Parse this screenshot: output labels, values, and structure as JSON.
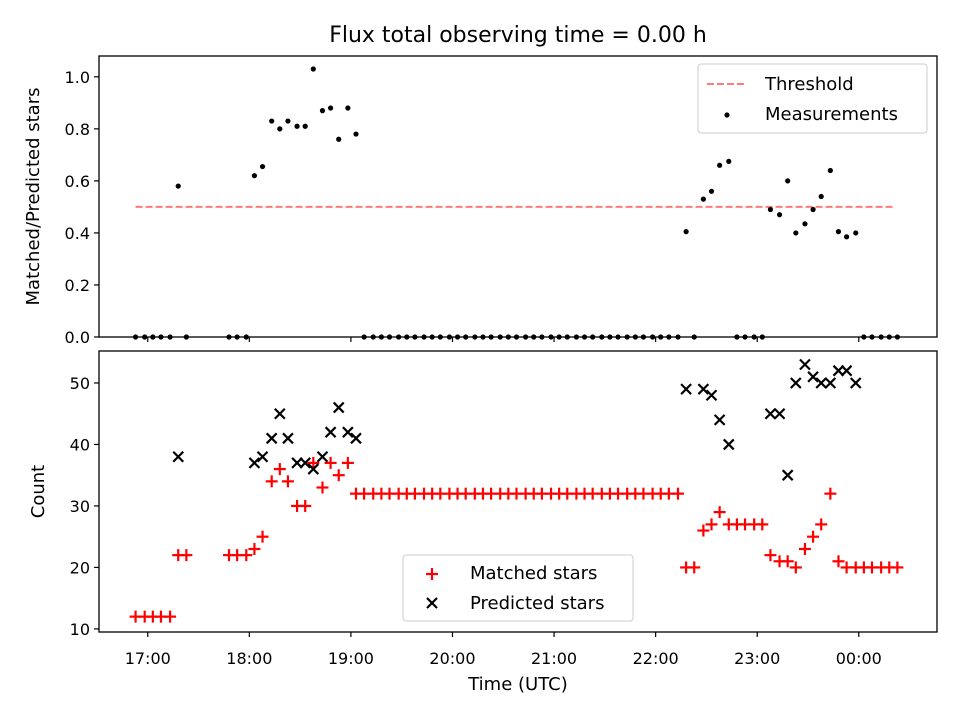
{
  "figure_title": "Flux total observing time = 0.00 h",
  "chart_data": [
    {
      "type": "scatter",
      "ylabel": "Matched/Predicted stars",
      "ylim": [
        0,
        1.08
      ],
      "yticks": [
        0.0,
        0.2,
        0.4,
        0.6,
        0.8,
        1.0
      ],
      "ytick_labels": [
        "0.0",
        "0.2",
        "0.4",
        "0.6",
        "0.8",
        "1.0"
      ],
      "xlim": [
        16.52,
        24.77
      ],
      "legend": {
        "placement": "top-right",
        "entries": [
          "Threshold",
          "Measurements"
        ]
      },
      "threshold": {
        "name": "Threshold",
        "value": 0.5,
        "x_start": 16.88,
        "x_end": 24.35,
        "color": "#ff7b7b",
        "style": "dashed"
      },
      "measurements": {
        "name": "Measurements",
        "color": "#000000",
        "x": [
          16.88,
          16.97,
          17.05,
          17.13,
          17.22,
          17.3,
          17.38,
          17.8,
          17.88,
          17.97,
          18.05,
          18.13,
          18.22,
          18.3,
          18.38,
          18.47,
          18.55,
          18.63,
          18.72,
          18.8,
          18.88,
          18.97,
          19.05,
          19.13,
          19.22,
          19.3,
          19.38,
          19.47,
          19.55,
          19.63,
          19.72,
          19.8,
          19.88,
          19.97,
          20.05,
          20.13,
          20.22,
          20.3,
          20.38,
          20.47,
          20.55,
          20.63,
          20.72,
          20.8,
          20.88,
          20.97,
          21.05,
          21.13,
          21.22,
          21.3,
          21.38,
          21.47,
          21.55,
          21.63,
          21.72,
          21.8,
          21.88,
          21.97,
          22.05,
          22.13,
          22.22,
          22.3,
          22.38,
          22.47,
          22.55,
          22.63,
          22.72,
          22.8,
          22.88,
          22.97,
          23.05,
          23.13,
          23.22,
          23.3,
          23.38,
          23.47,
          23.55,
          23.63,
          23.72,
          23.8,
          23.88,
          23.97,
          24.05,
          24.13,
          24.22,
          24.3,
          24.38
        ],
        "y": [
          0,
          0,
          0,
          0,
          0,
          0.58,
          0,
          0,
          0,
          0,
          0.62,
          0.655,
          0.83,
          0.8,
          0.83,
          0.81,
          0.81,
          1.03,
          0.87,
          0.88,
          0.76,
          0.88,
          0.78,
          0,
          0,
          0,
          0,
          0,
          0,
          0,
          0,
          0,
          0,
          0,
          0,
          0,
          0,
          0,
          0,
          0,
          0,
          0,
          0,
          0,
          0,
          0,
          0,
          0,
          0,
          0,
          0,
          0,
          0,
          0,
          0,
          0,
          0,
          0,
          0,
          0,
          0,
          0.405,
          0,
          0.53,
          0.56,
          0.66,
          0.675,
          0,
          0,
          0,
          0,
          0.49,
          0.47,
          0.6,
          0.4,
          0.435,
          0.49,
          0.54,
          0.64,
          0.405,
          0.385,
          0.4,
          0,
          0,
          0,
          0,
          0
        ]
      }
    },
    {
      "type": "scatter",
      "ylabel": "Count",
      "xlabel": "Time (UTC)",
      "ylim": [
        9.5,
        55.2
      ],
      "yticks": [
        10,
        20,
        30,
        40,
        50
      ],
      "ytick_labels": [
        "10",
        "20",
        "30",
        "40",
        "50"
      ],
      "xlim": [
        16.52,
        24.77
      ],
      "xticks": [
        17,
        18,
        19,
        20,
        21,
        22,
        23,
        24
      ],
      "xtick_labels": [
        "17:00",
        "18:00",
        "19:00",
        "20:00",
        "21:00",
        "22:00",
        "23:00",
        "00:00"
      ],
      "legend": {
        "placement": "lower-center",
        "entries": [
          "Matched stars",
          "Predicted stars"
        ]
      },
      "series": [
        {
          "name": "Matched stars",
          "marker": "+",
          "color": "#ff0000",
          "x": [
            16.88,
            16.97,
            17.05,
            17.13,
            17.22,
            17.3,
            17.38,
            17.8,
            17.88,
            17.97,
            18.05,
            18.13,
            18.22,
            18.3,
            18.38,
            18.47,
            18.55,
            18.63,
            18.72,
            18.8,
            18.88,
            18.97,
            19.05,
            19.13,
            19.22,
            19.3,
            19.38,
            19.47,
            19.55,
            19.63,
            19.72,
            19.8,
            19.88,
            19.97,
            20.05,
            20.13,
            20.22,
            20.3,
            20.38,
            20.47,
            20.55,
            20.63,
            20.72,
            20.8,
            20.88,
            20.97,
            21.05,
            21.13,
            21.22,
            21.3,
            21.38,
            21.47,
            21.55,
            21.63,
            21.72,
            21.8,
            21.88,
            21.97,
            22.05,
            22.13,
            22.22,
            22.3,
            22.38,
            22.47,
            22.55,
            22.63,
            22.72,
            22.8,
            22.88,
            22.97,
            23.05,
            23.13,
            23.22,
            23.3,
            23.38,
            23.47,
            23.55,
            23.63,
            23.72,
            23.8,
            23.88,
            23.97,
            24.05,
            24.13,
            24.22,
            24.3,
            24.38
          ],
          "y": [
            12,
            12,
            12,
            12,
            12,
            22,
            22,
            22,
            22,
            22,
            23,
            25,
            34,
            36,
            34,
            30,
            30,
            37,
            33,
            37,
            35,
            37,
            32,
            32,
            32,
            32,
            32,
            32,
            32,
            32,
            32,
            32,
            32,
            32,
            32,
            32,
            32,
            32,
            32,
            32,
            32,
            32,
            32,
            32,
            32,
            32,
            32,
            32,
            32,
            32,
            32,
            32,
            32,
            32,
            32,
            32,
            32,
            32,
            32,
            32,
            32,
            20,
            20,
            26,
            27,
            29,
            27,
            27,
            27,
            27,
            27,
            22,
            21,
            21,
            20,
            23,
            25,
            27,
            32,
            21,
            20,
            20,
            20,
            20,
            20,
            20,
            20
          ]
        },
        {
          "name": "Predicted stars",
          "marker": "x",
          "color": "#000000",
          "x": [
            17.3,
            18.05,
            18.13,
            18.22,
            18.3,
            18.38,
            18.47,
            18.55,
            18.63,
            18.72,
            18.8,
            18.88,
            18.97,
            19.05,
            22.3,
            22.47,
            22.55,
            22.63,
            22.72,
            23.13,
            23.22,
            23.3,
            23.38,
            23.47,
            23.55,
            23.63,
            23.72,
            23.8,
            23.88,
            23.97
          ],
          "y": [
            38,
            37,
            38,
            41,
            45,
            41,
            37,
            37,
            36,
            38,
            42,
            46,
            42,
            41,
            49,
            49,
            48,
            44,
            40,
            45,
            45,
            35,
            50,
            53,
            51,
            50,
            50,
            52,
            52,
            50
          ]
        }
      ]
    }
  ]
}
